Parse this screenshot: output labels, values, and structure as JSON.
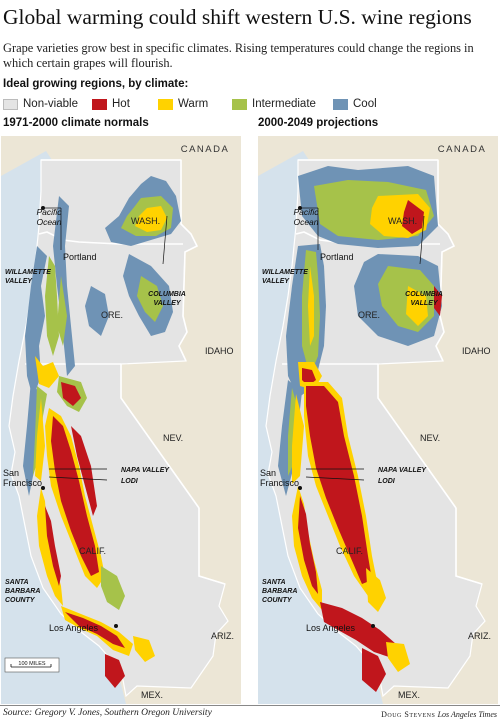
{
  "title": "Global warming could shift western U.S. wine regions",
  "subtitle": "Grape varieties grow best in specific climates. Rising temperatures could change the regions in which certain grapes will flourish.",
  "legend": {
    "title": "Ideal growing regions, by climate:",
    "items": [
      {
        "label": "Non-viable",
        "color": "#e4e4e4"
      },
      {
        "label": "Hot",
        "color": "#c0161c"
      },
      {
        "label": "Warm",
        "color": "#ffd200"
      },
      {
        "label": "Intermediate",
        "color": "#a6c24a"
      },
      {
        "label": "Cool",
        "color": "#6f93b5"
      }
    ]
  },
  "colors": {
    "ocean": "#d5e2ec",
    "other_land": "#ece6d6",
    "border": "#ffffff"
  },
  "panels": [
    {
      "title": "1971-2000 climate normals",
      "labels": {
        "canada": "CANADA",
        "pacific": "Pacific",
        "ocean": "Ocean",
        "wash": "WASH.",
        "portland": "Portland",
        "willamette_1": "WILLAMETTE",
        "willamette_2": "VALLEY",
        "columbia_1": "COLUMBIA",
        "columbia_2": "VALLEY",
        "ore": "ORE.",
        "idaho": "IDAHO",
        "nev": "NEV.",
        "napa": "NAPA VALLEY",
        "lodi": "LODI",
        "san": "San",
        "francisco": "Francisco",
        "calif": "CALIF.",
        "sb_1": "SANTA",
        "sb_2": "BARBARA",
        "sb_3": "COUNTY",
        "la": "Los Angeles",
        "ariz": "ARIZ.",
        "mex": "MEX.",
        "scale": "100 MILES"
      }
    },
    {
      "title": "2000-2049 projections",
      "labels": {
        "canada": "CANADA",
        "pacific": "Pacific",
        "ocean": "Ocean",
        "wash": "WASH.",
        "portland": "Portland",
        "willamette_1": "WILLAMETTE",
        "willamette_2": "VALLEY",
        "columbia_1": "COLUMBIA",
        "columbia_2": "VALLEY",
        "ore": "ORE.",
        "idaho": "IDAHO",
        "nev": "NEV.",
        "napa": "NAPA VALLEY",
        "lodi": "LODI",
        "san": "San",
        "francisco": "Francisco",
        "calif": "CALIF.",
        "sb_1": "SANTA",
        "sb_2": "BARBARA",
        "sb_3": "COUNTY",
        "la": "Los Angeles",
        "ariz": "ARIZ.",
        "mex": "MEX."
      }
    }
  ],
  "source": "Source: Gregory V. Jones, Southern Oregon University",
  "credit": {
    "name": "Doug Stevens",
    "publication": "Los Angeles Times"
  }
}
